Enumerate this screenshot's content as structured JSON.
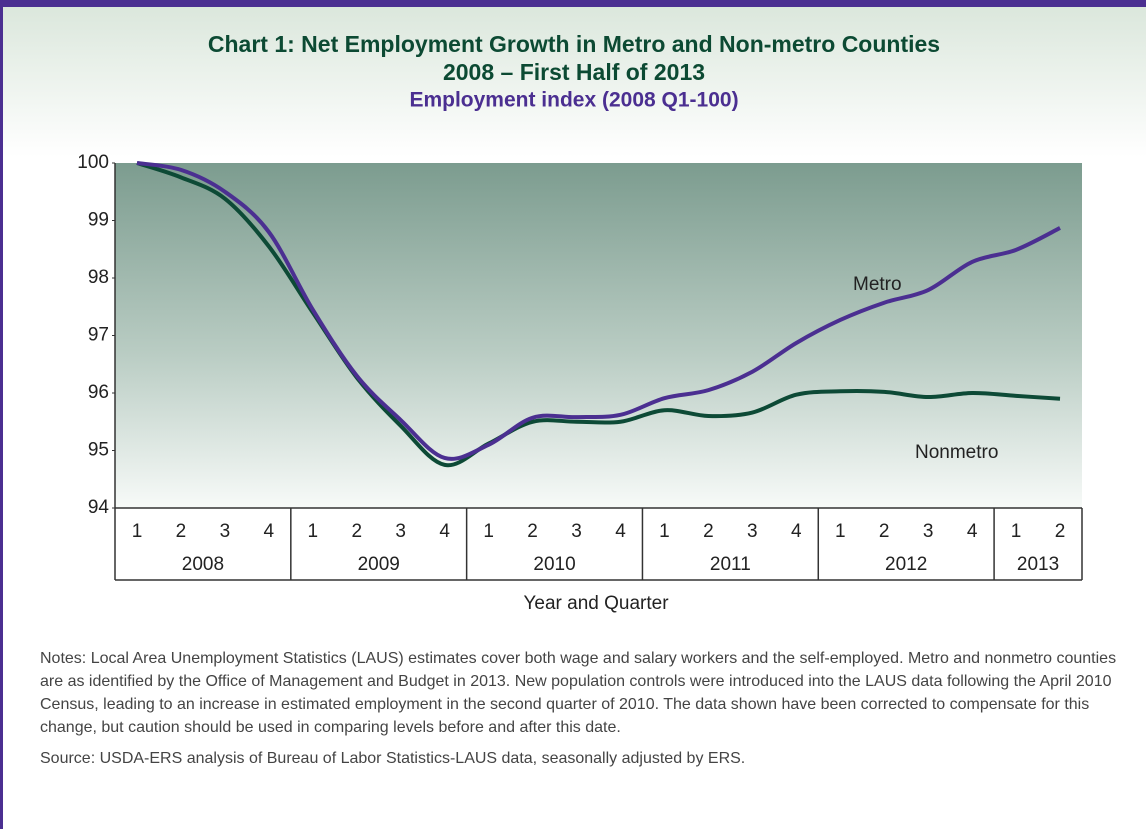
{
  "chart_data": {
    "type": "line",
    "title": "Chart 1: Net Employment Growth in Metro and Non-metro Counties",
    "title_line2": "2008 – First Half of 2013",
    "subtitle": "Employment index (2008 Q1-100)",
    "x_label": "Year and Quarter",
    "categories": [
      "1",
      "2",
      "3",
      "4",
      "1",
      "2",
      "3",
      "4",
      "1",
      "2",
      "3",
      "4",
      "1",
      "2",
      "3",
      "4",
      "1",
      "2",
      "3",
      "4",
      "1",
      "2"
    ],
    "years": [
      "2008",
      "2009",
      "2010",
      "2011",
      "2012",
      "2013"
    ],
    "year_quarters": [
      4,
      4,
      4,
      4,
      4,
      2
    ],
    "ylim": [
      94,
      100
    ],
    "yticks": [
      94,
      95,
      96,
      97,
      98,
      99,
      100
    ],
    "series": [
      {
        "name": "Metro",
        "color": "#4b2f91",
        "values": [
          100,
          99.88,
          99.5,
          98.8,
          97.45,
          96.3,
          95.53,
          94.87,
          95.1,
          95.57,
          95.58,
          95.62,
          95.91,
          96.05,
          96.37,
          96.87,
          97.27,
          97.57,
          97.79,
          98.28,
          98.49,
          98.87
        ]
      },
      {
        "name": "Nonmetro",
        "color": "#0d4a36",
        "values": [
          100,
          99.75,
          99.38,
          98.55,
          97.4,
          96.27,
          95.43,
          94.75,
          95.12,
          95.5,
          95.5,
          95.5,
          95.7,
          95.6,
          95.66,
          95.97,
          96.03,
          96.02,
          95.93,
          96.0,
          95.95,
          95.9
        ]
      }
    ],
    "notes": "Notes: Local Area Unemployment Statistics (LAUS) estimates cover both wage and salary workers and the self-employed. Metro and nonmetro counties are as identified by the Office of Management and Budget in 2013. New population controls were introduced into the LAUS data following the April 2010 Census, leading to an increase in estimated employment in the second quarter of 2010. The data shown have been corrected to compensate for this change, but caution should be used in comparing levels before and after this date.",
    "source": "Source: USDA-ERS analysis of Bureau of Labor Statistics-LAUS data, seasonally adjusted by ERS."
  }
}
